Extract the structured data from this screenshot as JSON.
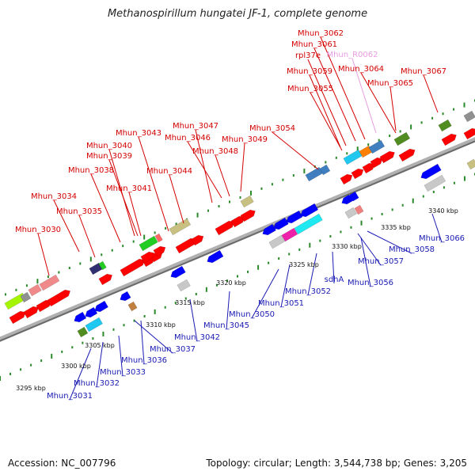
{
  "title": "Methanospirillum hungatei JF-1, complete genome",
  "footer": {
    "accession": "Accession: NC_007796",
    "topology": "Topology: circular; Length: 3,544,738 bp; Genes: 3,205"
  },
  "colors": {
    "forward_gene": "#ff0000",
    "reverse_gene": "#0000ff",
    "top_label": "#d40000",
    "bottom_label": "#1a1ab4",
    "rna_label": "#e89ce0",
    "tick_mark": "#2a8a2a",
    "backbone": "#888888"
  },
  "ticks": [
    "3295 kbp",
    "3300 kbp",
    "3305 kbp",
    "3310 kbp",
    "3315 kbp",
    "3320 kbp",
    "3325 kbp",
    "3330 kbp",
    "3335 kbp",
    "3340 kbp"
  ],
  "top_labels": [
    "Mhun_3030",
    "Mhun_3034",
    "Mhun_3035",
    "Mhun_3038",
    "Mhun_3041",
    "Mhun_3039",
    "Mhun_3040",
    "Mhun_3043",
    "Mhun_3044",
    "Mhun_3047",
    "Mhun_3046",
    "Mhun_3048",
    "Mhun_3049",
    "Mhun_3054",
    "Mhun_3055",
    "Mhun_3059",
    "rpl37e",
    "Mhun_3061",
    "Mhun_3062",
    "Mhun_R0062",
    "Mhun_3064",
    "Mhun_3065",
    "Mhun_3067"
  ],
  "bottom_labels": [
    "Mhun_3031",
    "Mhun_3032",
    "Mhun_3033",
    "Mhun_3036",
    "Mhun_3037",
    "Mhun_3042",
    "Mhun_3045",
    "Mhun_3050",
    "Mhun_3051",
    "Mhun_3052",
    "sdhA",
    "Mhun_3056",
    "Mhun_3057",
    "Mhun_3058",
    "Mhun_3066"
  ]
}
